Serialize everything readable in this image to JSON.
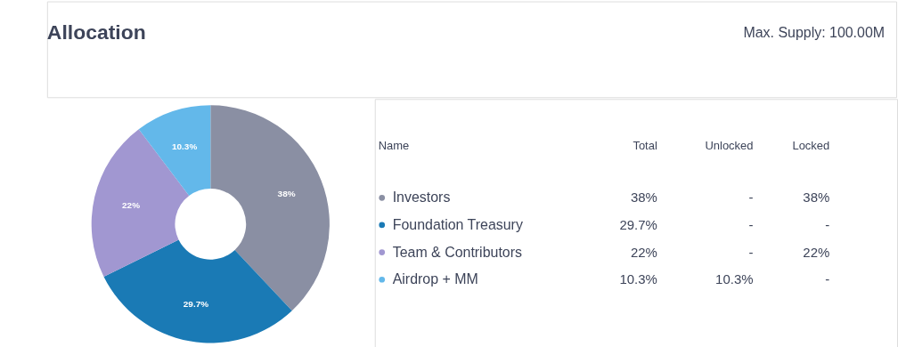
{
  "chart_data": {
    "type": "donut",
    "title": "Allocation",
    "subtitle": "Max. Supply: 100.00M",
    "categories": [
      "Investors",
      "Foundation Treasury",
      "Team & Contributors",
      "Airdrop + MM"
    ],
    "values": [
      38,
      29.7,
      22,
      10.3
    ],
    "colors": [
      "#8a8fa3",
      "#1a7ab5",
      "#a197d1",
      "#63b8ea"
    ],
    "value_labels": [
      "38%",
      "29.7%",
      "22%",
      "10.3%"
    ],
    "legend": "right",
    "annotations": [
      "Name",
      "Total",
      "Unlocked",
      "Locked",
      "-",
      "38%",
      "-",
      "-",
      "-",
      "22%",
      "10.3%",
      "-"
    ]
  }
}
